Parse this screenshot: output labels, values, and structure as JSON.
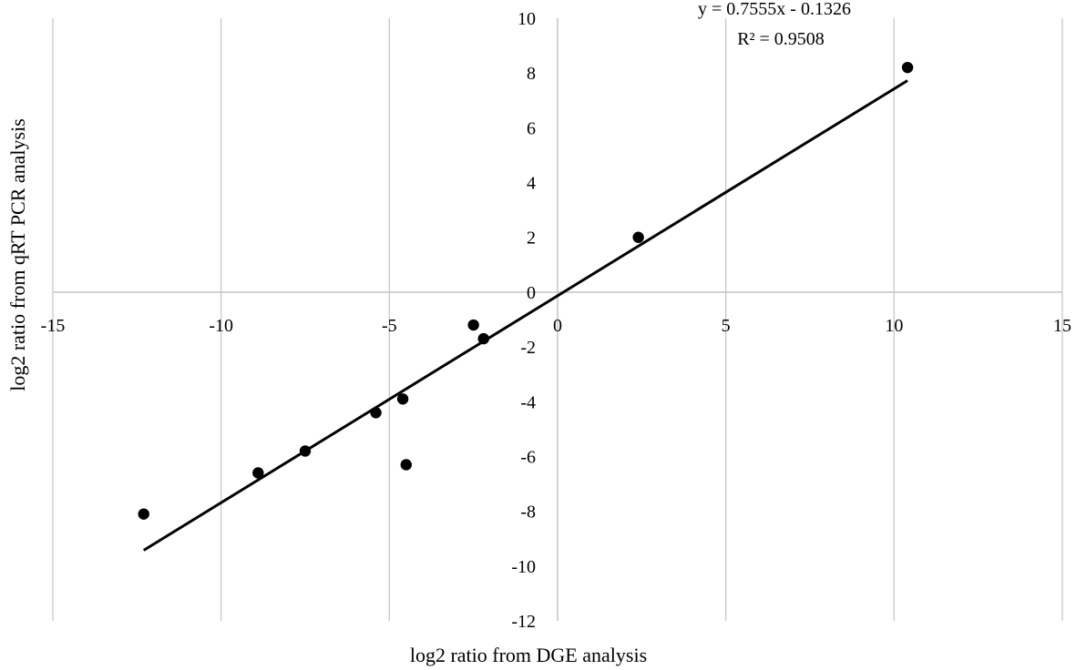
{
  "chart_data": {
    "type": "scatter",
    "title": "",
    "xlabel": "log2 ratio from DGE analysis",
    "ylabel": "log2 ratio from qRT PCR analysis",
    "xlim": [
      -15,
      15
    ],
    "ylim": [
      -12,
      10
    ],
    "x_ticks": [
      -15,
      -10,
      -5,
      0,
      5,
      10,
      15
    ],
    "y_ticks": [
      -12,
      -10,
      -8,
      -6,
      -4,
      -2,
      0,
      2,
      4,
      6,
      8,
      10
    ],
    "grid": "vertical",
    "legend": "none",
    "series": [
      {
        "points": [
          {
            "x": -12.3,
            "y": -8.1
          },
          {
            "x": -8.9,
            "y": -6.6
          },
          {
            "x": -7.5,
            "y": -5.8
          },
          {
            "x": -5.4,
            "y": -4.4
          },
          {
            "x": -4.6,
            "y": -3.9
          },
          {
            "x": -4.5,
            "y": -6.3
          },
          {
            "x": -2.5,
            "y": -1.2
          },
          {
            "x": -2.2,
            "y": -1.7
          },
          {
            "x": 2.4,
            "y": 2.0
          },
          {
            "x": 10.4,
            "y": 8.2
          }
        ]
      }
    ],
    "trendline": {
      "slope": 0.7555,
      "intercept": -0.1326,
      "x_range": [
        -12.3,
        10.4
      ],
      "equation": "y = 0.7555x - 0.1326",
      "r_squared": "R² = 0.9508"
    },
    "colors": {
      "points": "#000000",
      "trendline": "#000000",
      "gridlines": "#c8c8c8",
      "axes": "#c8c8c8"
    }
  }
}
